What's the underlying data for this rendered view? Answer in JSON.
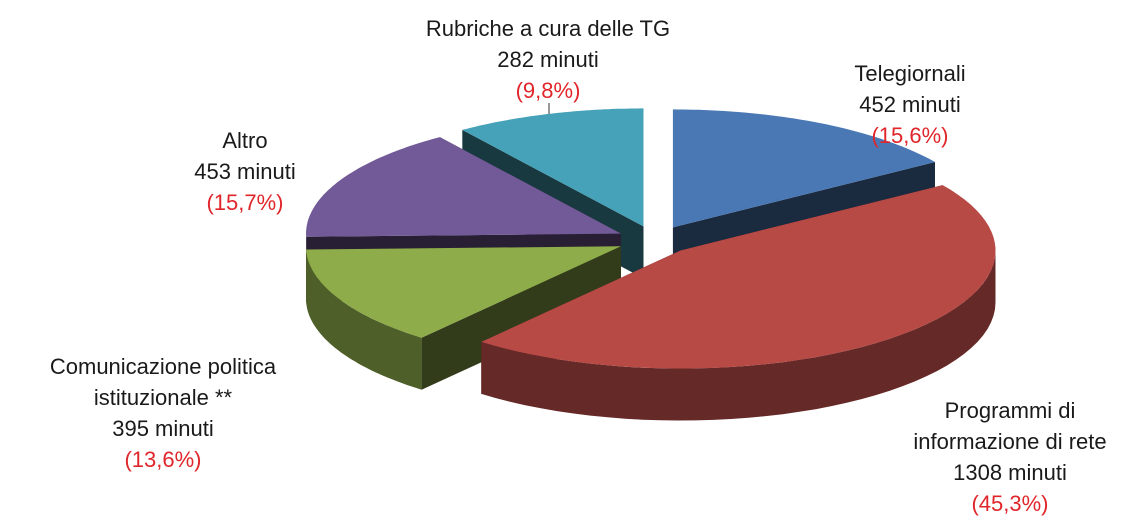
{
  "chart_data": {
    "type": "pie3d",
    "categories": [
      "Telegiornali",
      "Programmi di\ninformazione di rete",
      "Comunicazione politica\nistituzionale **",
      "Altro",
      "Rubriche a cura delle TG"
    ],
    "values": [
      452,
      1308,
      395,
      453,
      282
    ],
    "value_labels": [
      "452 minuti",
      "1308 minuti",
      "395 minuti",
      "453 minuti",
      "282 minuti"
    ],
    "percentages": [
      15.6,
      45.3,
      13.6,
      15.7,
      9.8
    ],
    "percentage_labels": [
      "(15,6%)",
      "(45,3%)",
      "(13,6%)",
      "(15,7%)",
      "(9,8%)"
    ],
    "colors": [
      "#4a78b5",
      "#b84a46",
      "#8eac4a",
      "#715a97",
      "#46a2b8"
    ]
  }
}
